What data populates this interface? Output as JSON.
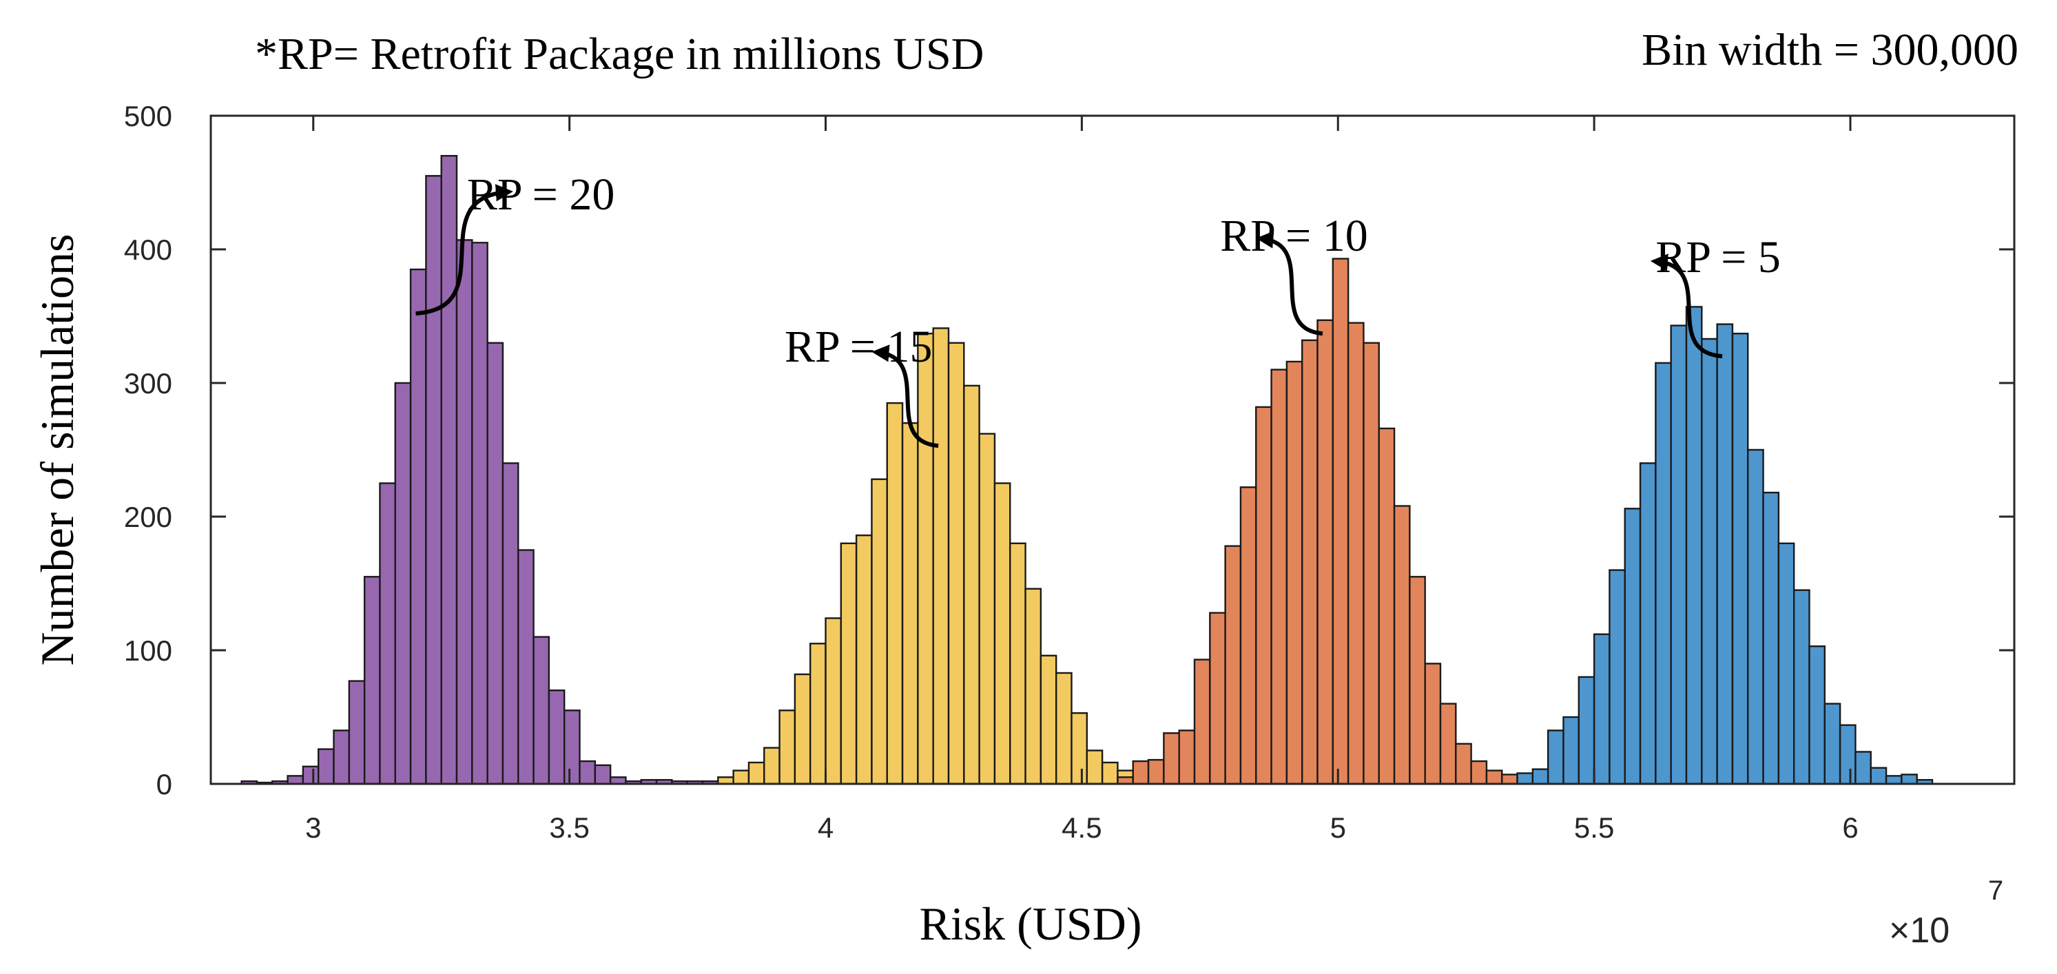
{
  "chart_data": {
    "type": "bar",
    "note_left": "*RP= Retrofit Package in millions USD",
    "note_right": "Bin width = 300,000",
    "xlabel": "Risk (USD)",
    "ylabel": "Number of simulations",
    "x_exponent_base": "×10",
    "x_exponent_power": "7",
    "xlim": [
      28000000,
      63200000
    ],
    "ylim": [
      0,
      500
    ],
    "x_ticks": [
      30000000,
      35000000,
      40000000,
      45000000,
      50000000,
      55000000,
      60000000
    ],
    "x_tick_labels": [
      "3",
      "3.5",
      "4",
      "4.5",
      "5",
      "5.5",
      "6"
    ],
    "y_ticks": [
      0,
      100,
      200,
      300,
      400,
      500
    ],
    "y_tick_labels": [
      "0",
      "100",
      "200",
      "300",
      "400",
      "500"
    ],
    "bin_width": 300000,
    "grid": false,
    "series": [
      {
        "color": "#9768AF",
        "bins": [
          {
            "x": 28600000,
            "y": 2
          },
          {
            "x": 28900000,
            "y": 1
          },
          {
            "x": 29200000,
            "y": 2
          },
          {
            "x": 29500000,
            "y": 6
          },
          {
            "x": 29800000,
            "y": 13
          },
          {
            "x": 30100000,
            "y": 26
          },
          {
            "x": 30400000,
            "y": 40
          },
          {
            "x": 30700000,
            "y": 77
          },
          {
            "x": 31000000,
            "y": 155
          },
          {
            "x": 31300000,
            "y": 225
          },
          {
            "x": 31600000,
            "y": 300
          },
          {
            "x": 31900000,
            "y": 385
          },
          {
            "x": 32200000,
            "y": 455
          },
          {
            "x": 32500000,
            "y": 470
          },
          {
            "x": 32800000,
            "y": 407
          },
          {
            "x": 33100000,
            "y": 405
          },
          {
            "x": 33400000,
            "y": 330
          },
          {
            "x": 33700000,
            "y": 240
          },
          {
            "x": 34000000,
            "y": 175
          },
          {
            "x": 34300000,
            "y": 110
          },
          {
            "x": 34600000,
            "y": 70
          },
          {
            "x": 34900000,
            "y": 55
          },
          {
            "x": 35200000,
            "y": 17
          },
          {
            "x": 35500000,
            "y": 14
          },
          {
            "x": 35800000,
            "y": 5
          },
          {
            "x": 36100000,
            "y": 2
          },
          {
            "x": 36400000,
            "y": 3
          },
          {
            "x": 36700000,
            "y": 3
          },
          {
            "x": 37000000,
            "y": 2
          },
          {
            "x": 37300000,
            "y": 2
          },
          {
            "x": 37600000,
            "y": 2
          }
        ]
      },
      {
        "color": "#F2CA60",
        "bins": [
          {
            "x": 37900000,
            "y": 5
          },
          {
            "x": 38200000,
            "y": 10
          },
          {
            "x": 38500000,
            "y": 16
          },
          {
            "x": 38800000,
            "y": 27
          },
          {
            "x": 39100000,
            "y": 55
          },
          {
            "x": 39400000,
            "y": 82
          },
          {
            "x": 39700000,
            "y": 105
          },
          {
            "x": 40000000,
            "y": 124
          },
          {
            "x": 40300000,
            "y": 180
          },
          {
            "x": 40600000,
            "y": 186
          },
          {
            "x": 40900000,
            "y": 228
          },
          {
            "x": 41200000,
            "y": 285
          },
          {
            "x": 41500000,
            "y": 270
          },
          {
            "x": 41800000,
            "y": 337
          },
          {
            "x": 42100000,
            "y": 341
          },
          {
            "x": 42400000,
            "y": 330
          },
          {
            "x": 42700000,
            "y": 298
          },
          {
            "x": 43000000,
            "y": 262
          },
          {
            "x": 43300000,
            "y": 225
          },
          {
            "x": 43600000,
            "y": 180
          },
          {
            "x": 43900000,
            "y": 146
          },
          {
            "x": 44200000,
            "y": 96
          },
          {
            "x": 44500000,
            "y": 83
          },
          {
            "x": 44800000,
            "y": 53
          },
          {
            "x": 45100000,
            "y": 25
          },
          {
            "x": 45400000,
            "y": 16
          },
          {
            "x": 45700000,
            "y": 10
          },
          {
            "x": 46000000,
            "y": 6
          }
        ]
      },
      {
        "color": "#E3855B",
        "bins": [
          {
            "x": 45700000,
            "y": 5
          },
          {
            "x": 46000000,
            "y": 17
          },
          {
            "x": 46300000,
            "y": 18
          },
          {
            "x": 46600000,
            "y": 38
          },
          {
            "x": 46900000,
            "y": 40
          },
          {
            "x": 47200000,
            "y": 93
          },
          {
            "x": 47500000,
            "y": 128
          },
          {
            "x": 47800000,
            "y": 178
          },
          {
            "x": 48100000,
            "y": 222
          },
          {
            "x": 48400000,
            "y": 282
          },
          {
            "x": 48700000,
            "y": 310
          },
          {
            "x": 49000000,
            "y": 316
          },
          {
            "x": 49300000,
            "y": 332
          },
          {
            "x": 49600000,
            "y": 347
          },
          {
            "x": 49900000,
            "y": 393
          },
          {
            "x": 50200000,
            "y": 345
          },
          {
            "x": 50500000,
            "y": 330
          },
          {
            "x": 50800000,
            "y": 266
          },
          {
            "x": 51100000,
            "y": 208
          },
          {
            "x": 51400000,
            "y": 155
          },
          {
            "x": 51700000,
            "y": 90
          },
          {
            "x": 52000000,
            "y": 60
          },
          {
            "x": 52300000,
            "y": 30
          },
          {
            "x": 52600000,
            "y": 17
          },
          {
            "x": 52900000,
            "y": 10
          },
          {
            "x": 53200000,
            "y": 7
          },
          {
            "x": 53500000,
            "y": 6
          }
        ]
      },
      {
        "color": "#4E96CE",
        "bins": [
          {
            "x": 53500000,
            "y": 8
          },
          {
            "x": 53800000,
            "y": 11
          },
          {
            "x": 54100000,
            "y": 40
          },
          {
            "x": 54400000,
            "y": 50
          },
          {
            "x": 54700000,
            "y": 80
          },
          {
            "x": 55000000,
            "y": 112
          },
          {
            "x": 55300000,
            "y": 160
          },
          {
            "x": 55600000,
            "y": 206
          },
          {
            "x": 55900000,
            "y": 240
          },
          {
            "x": 56200000,
            "y": 315
          },
          {
            "x": 56500000,
            "y": 343
          },
          {
            "x": 56800000,
            "y": 357
          },
          {
            "x": 57100000,
            "y": 333
          },
          {
            "x": 57400000,
            "y": 344
          },
          {
            "x": 57700000,
            "y": 337
          },
          {
            "x": 58000000,
            "y": 250
          },
          {
            "x": 58300000,
            "y": 218
          },
          {
            "x": 58600000,
            "y": 180
          },
          {
            "x": 58900000,
            "y": 145
          },
          {
            "x": 59200000,
            "y": 103
          },
          {
            "x": 59500000,
            "y": 60
          },
          {
            "x": 59800000,
            "y": 44
          },
          {
            "x": 60100000,
            "y": 24
          },
          {
            "x": 60400000,
            "y": 12
          },
          {
            "x": 60700000,
            "y": 6
          },
          {
            "x": 61000000,
            "y": 7
          },
          {
            "x": 61300000,
            "y": 3
          }
        ]
      }
    ],
    "annotations": [
      {
        "text": "RP = 20",
        "text_x": 33000000,
        "text_y": 430,
        "arrow_from": [
          32000000,
          352
        ],
        "arrow_to": [
          33800000,
          443
        ]
      },
      {
        "text": "RP = 15",
        "text_x": 39200000,
        "text_y": 316,
        "arrow_from": [
          42200000,
          253
        ],
        "arrow_to": [
          41000000,
          323
        ]
      },
      {
        "text": "RP = 10",
        "text_x": 47700000,
        "text_y": 399,
        "arrow_from": [
          49700000,
          337
        ],
        "arrow_to": [
          48500000,
          408
        ]
      },
      {
        "text": "RP = 5",
        "text_x": 56200000,
        "text_y": 383,
        "arrow_from": [
          57500000,
          320
        ],
        "arrow_to": [
          56200000,
          391
        ]
      }
    ]
  }
}
